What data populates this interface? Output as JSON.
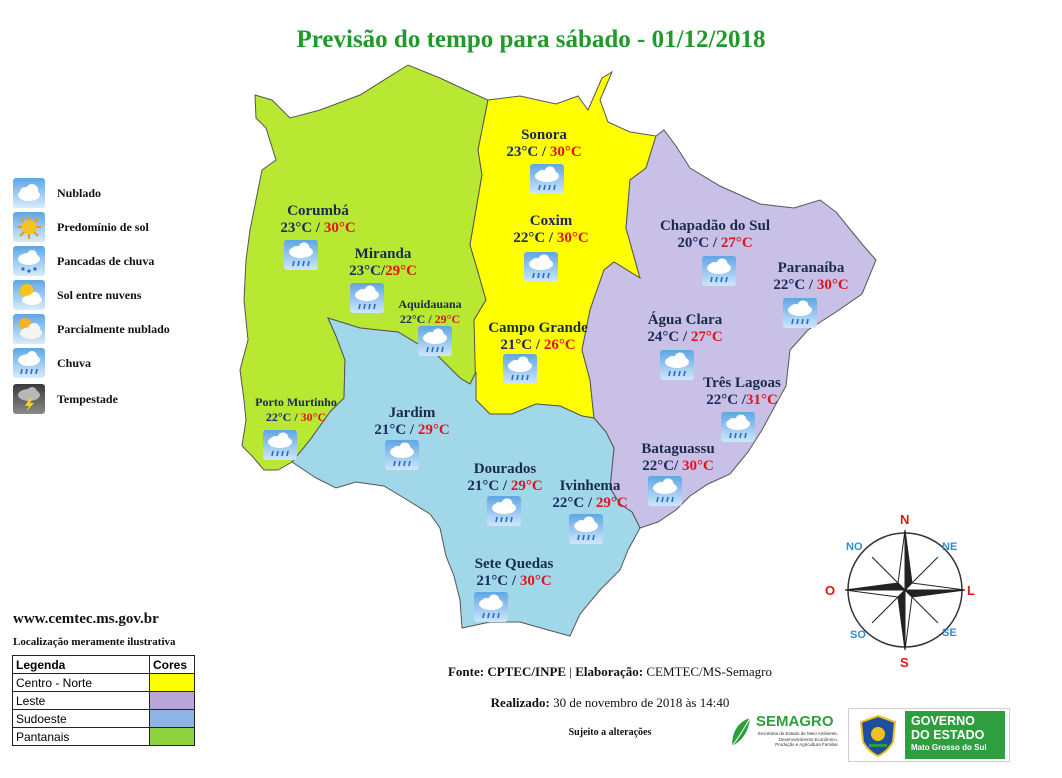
{
  "title": "Previsão do tempo para sábado - 01/12/2018",
  "colors": {
    "centro_norte": "#ffff00",
    "leste": "#c8c0e6",
    "sudoeste": "#a0d8ea",
    "pantanais": "#b8e832",
    "title_green": "#1f9a2b",
    "max_red": "#e0141d",
    "min_blue": "#1c2a5e"
  },
  "cities": [
    {
      "name": "Sonora",
      "min": "23°C",
      "sep": " / ",
      "max": "30°C",
      "icon": "rain-icon"
    },
    {
      "name": "Coxim",
      "min": "22°C",
      "sep": " / ",
      "max": "30°C",
      "icon": "rain-icon"
    },
    {
      "name": "Corumbá",
      "min": "23°C",
      "sep": " / ",
      "max": "30°C",
      "icon": "rain-icon"
    },
    {
      "name": "Miranda",
      "min": "23°C",
      "sep": "/",
      "max": "29°C",
      "icon": "rain-icon"
    },
    {
      "name": "Aquidauana",
      "min": "22°C",
      "sep": " / ",
      "max": "29°C",
      "icon": "rain-icon"
    },
    {
      "name": "Chapadão do Sul",
      "min": "20°C",
      "sep": " / ",
      "max": "27°C",
      "icon": "rain-icon"
    },
    {
      "name": "Paranaíba",
      "min": "22°C",
      "sep": " / ",
      "max": "30°C",
      "icon": "rain-icon"
    },
    {
      "name": "Campo Grande",
      "min": "21°C",
      "sep": " / ",
      "max": "26°C",
      "icon": "rain-icon"
    },
    {
      "name": "Água Clara",
      "min": "24°C",
      "sep": " / ",
      "max": "27°C",
      "icon": "rain-icon"
    },
    {
      "name": "Três Lagoas",
      "min": "22°C",
      "sep": " /",
      "max": "31°C",
      "icon": "rain-icon"
    },
    {
      "name": "Porto Murtinho",
      "min": "22°C",
      "sep": " / ",
      "max": "30°C",
      "icon": "rain-icon"
    },
    {
      "name": "Jardim",
      "min": "21°C",
      "sep": " / ",
      "max": "29°C",
      "icon": "rain-icon"
    },
    {
      "name": "Bataguassu",
      "min": "22°C",
      "sep": "/ ",
      "max": "30°C",
      "icon": "rain-icon"
    },
    {
      "name": "Dourados",
      "min": "21°C",
      "sep": " / ",
      "max": "29°C",
      "icon": "rain-icon"
    },
    {
      "name": "Ivinhema",
      "min": "22°C",
      "sep": " / ",
      "max": "29°C",
      "icon": "rain-icon"
    },
    {
      "name": "Sete Quedas",
      "min": "21°C",
      "sep": " / ",
      "max": "30°C",
      "icon": "rain-icon"
    }
  ],
  "icon_legend": [
    {
      "label": "Nublado",
      "icon": "cloudy-icon"
    },
    {
      "label": "Predomínio de sol",
      "icon": "sun-icon"
    },
    {
      "label": "Pancadas de chuva",
      "icon": "showers-icon"
    },
    {
      "label": "Sol entre nuvens",
      "icon": "sun-cloud-icon"
    },
    {
      "label": "Parcialmente nublado",
      "icon": "partly-cloudy-icon"
    },
    {
      "label": "Chuva",
      "icon": "rain-icon"
    },
    {
      "label": "Tempestade",
      "icon": "storm-icon"
    }
  ],
  "website": "www.cemtec.ms.gov.br",
  "disclaimer": "Localização meramente ilustrativa",
  "region_legend": {
    "header_left": "Legenda",
    "header_right": "Cores",
    "rows": [
      {
        "label": "Centro - Norte",
        "color": "#ffff00"
      },
      {
        "label": "Leste",
        "color": "#b8a6d8"
      },
      {
        "label": "Sudoeste",
        "color": "#8cb4e4"
      },
      {
        "label": "Pantanais",
        "color": "#8ed23e"
      }
    ]
  },
  "footer": {
    "source_label": "Fonte:",
    "source_value": "CPTEC/INPE",
    "separator": "|",
    "elab_label": "Elaboração:",
    "elab_value": "CEMTEC/MS-Semagro",
    "done_label": "Realizado:",
    "done_value": "30 de novembro de 2018 às 14:40",
    "subject": "Sujeito a alterações"
  },
  "compass": {
    "n": "N",
    "ne": "NE",
    "l": "L",
    "se": "SE",
    "s": "S",
    "so": "SO",
    "o": "O",
    "no": "NO"
  },
  "logos": {
    "semagro_name": "SEMAGRO",
    "semagro_sub1": "Secretaria de Estado de Meio Ambiente,",
    "semagro_sub2": "Desenvolvimento Econômico,",
    "semagro_sub3": "Produção e Agricultura Familiar",
    "gov_line1": "GOVERNO",
    "gov_line2": "DO ESTADO",
    "gov_line3": "Mato Grosso do Sul"
  }
}
